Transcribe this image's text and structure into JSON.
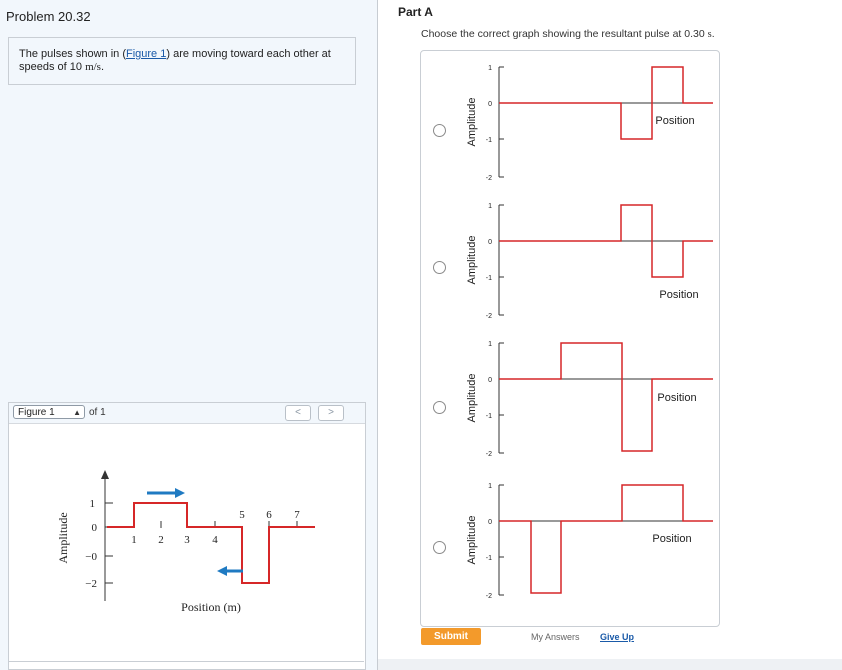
{
  "problem": {
    "title": "Problem 20.32",
    "desc_before": "The pulses shown in (",
    "figure_link": "Figure 1",
    "desc_after": ") are moving toward each other at speeds of 10 ",
    "unit": "m/s",
    "period": "."
  },
  "figure_panel": {
    "selector_value": "Figure 1",
    "of_label": "of 1",
    "prev": "<",
    "next": ">",
    "figure": {
      "ylabel": "Amplitude",
      "xlabel": "Position (m)",
      "yticks": [
        "1",
        "0",
        "−0",
        "−2"
      ],
      "xticks_below": [
        "1",
        "2",
        "3",
        "4"
      ],
      "xticks_above": [
        "5",
        "6",
        "7"
      ],
      "arrow_color": "#1f7ac2",
      "pulse_color": "#d62728"
    }
  },
  "part_a": {
    "label": "Part A",
    "instruction_before": "Choose the correct graph showing the resultant pulse at 0.30 ",
    "instruction_unit": "s",
    "instruction_after": ".",
    "options": [
      {
        "ylabel": "Amplitude",
        "xlabel": "Position",
        "yticks": [
          "1",
          "0",
          "-1",
          "-2"
        ]
      },
      {
        "ylabel": "Amplitude",
        "xlabel": "Position",
        "yticks": [
          "1",
          "0",
          "-1",
          "-2"
        ]
      },
      {
        "ylabel": "Amplitude",
        "xlabel": "Position",
        "yticks": [
          "1",
          "0",
          "-1",
          "-2"
        ]
      },
      {
        "ylabel": "Amplitude",
        "xlabel": "Position",
        "yticks": [
          "1",
          "0",
          "-1",
          "-2"
        ]
      }
    ],
    "submit": "Submit",
    "my_answers": "My Answers",
    "give_up": "Give Up"
  },
  "colors": {
    "accent_orange": "#f39a2b",
    "link_blue": "#1a5aa8",
    "pulse_red": "#d62728",
    "axis_dark": "#333333"
  }
}
